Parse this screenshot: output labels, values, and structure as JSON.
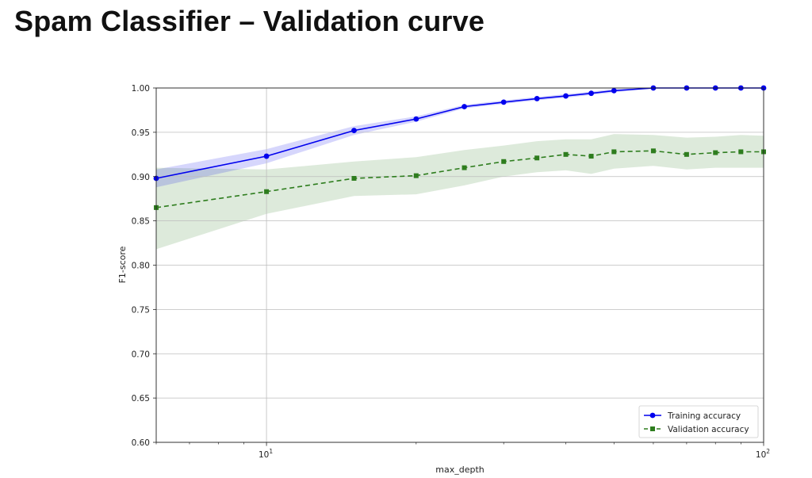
{
  "title": "Spam Classifier – Validation curve",
  "chart_data": {
    "type": "line",
    "xscale": "log",
    "xlabel": "max_depth",
    "ylabel": "F1-score",
    "xlim": [
      6,
      100
    ],
    "ylim": [
      0.6,
      1.0
    ],
    "x_major_ticks": [
      {
        "value": 10,
        "base": "10",
        "exp": "1"
      },
      {
        "value": 100,
        "base": "10",
        "exp": "2"
      }
    ],
    "y_ticks": [
      0.6,
      0.65,
      0.7,
      0.75,
      0.8,
      0.85,
      0.9,
      0.95,
      1.0
    ],
    "y_tick_labels": [
      "0.60",
      "0.65",
      "0.70",
      "0.75",
      "0.80",
      "0.85",
      "0.90",
      "0.95",
      "1.00"
    ],
    "grid": "major",
    "legend_position": "lower right",
    "series": [
      {
        "name": "Training accuracy",
        "color": "#0000ee",
        "marker": "circle",
        "linestyle": "solid",
        "x": [
          6,
          10,
          15,
          20,
          25,
          30,
          35,
          40,
          45,
          50,
          60,
          70,
          80,
          90,
          100
        ],
        "y": [
          0.898,
          0.923,
          0.952,
          0.965,
          0.979,
          0.984,
          0.988,
          0.991,
          0.994,
          0.997,
          1.0,
          1.0,
          1.0,
          1.0,
          1.0
        ],
        "y_lower": [
          0.888,
          0.915,
          0.947,
          0.962,
          0.977,
          0.982,
          0.986,
          0.989,
          0.992,
          0.995,
          1.0,
          1.0,
          1.0,
          1.0,
          1.0
        ],
        "y_upper": [
          0.908,
          0.931,
          0.957,
          0.968,
          0.981,
          0.986,
          0.99,
          0.993,
          0.996,
          0.999,
          1.0,
          1.0,
          1.0,
          1.0,
          1.0
        ]
      },
      {
        "name": "Validation accuracy",
        "color": "#2e7d1e",
        "marker": "square",
        "linestyle": "dashed",
        "x": [
          6,
          10,
          15,
          20,
          25,
          30,
          35,
          40,
          45,
          50,
          60,
          70,
          80,
          90,
          100
        ],
        "y": [
          0.865,
          0.883,
          0.898,
          0.901,
          0.91,
          0.917,
          0.921,
          0.925,
          0.923,
          0.928,
          0.929,
          0.925,
          0.927,
          0.928,
          0.928
        ],
        "y_lower": [
          0.818,
          0.858,
          0.878,
          0.88,
          0.89,
          0.9,
          0.905,
          0.907,
          0.903,
          0.909,
          0.912,
          0.908,
          0.91,
          0.91,
          0.91
        ],
        "y_upper": [
          0.91,
          0.908,
          0.917,
          0.922,
          0.93,
          0.935,
          0.94,
          0.942,
          0.942,
          0.948,
          0.947,
          0.944,
          0.945,
          0.947,
          0.946
        ]
      }
    ]
  }
}
